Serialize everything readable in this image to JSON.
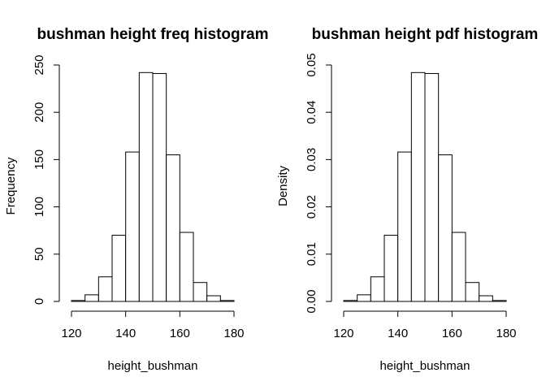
{
  "chart_data": [
    {
      "type": "bar",
      "title": "bushman height freq histogram",
      "xlabel": "height_bushman",
      "ylabel": "Frequency",
      "bin_edges": [
        120,
        125,
        130,
        135,
        140,
        145,
        150,
        155,
        160,
        165,
        170,
        175,
        180
      ],
      "values": [
        1,
        7,
        26,
        70,
        158,
        242,
        241,
        155,
        73,
        20,
        6,
        1
      ],
      "xlim": [
        120,
        180
      ],
      "ylim": [
        0,
        250
      ],
      "x_ticks": [
        "120",
        "140",
        "160",
        "180"
      ],
      "y_ticks": [
        "0",
        "50",
        "100",
        "150",
        "200",
        "250"
      ],
      "bar_fill": "#ffffff",
      "bar_stroke": "#000000",
      "grid": false
    },
    {
      "type": "bar",
      "title": "bushman height pdf histogram",
      "xlabel": "height_bushman",
      "ylabel": "Density",
      "bin_edges": [
        120,
        125,
        130,
        135,
        140,
        145,
        150,
        155,
        160,
        165,
        170,
        175,
        180
      ],
      "values": [
        0.0002,
        0.0014,
        0.0052,
        0.014,
        0.0316,
        0.0484,
        0.0482,
        0.031,
        0.0146,
        0.004,
        0.0012,
        0.0002
      ],
      "xlim": [
        120,
        180
      ],
      "ylim": [
        0,
        0.05
      ],
      "x_ticks": [
        "120",
        "140",
        "160",
        "180"
      ],
      "y_ticks": [
        "0.00",
        "0.01",
        "0.02",
        "0.03",
        "0.04",
        "0.05"
      ],
      "bar_fill": "#ffffff",
      "bar_stroke": "#000000",
      "grid": false
    }
  ]
}
